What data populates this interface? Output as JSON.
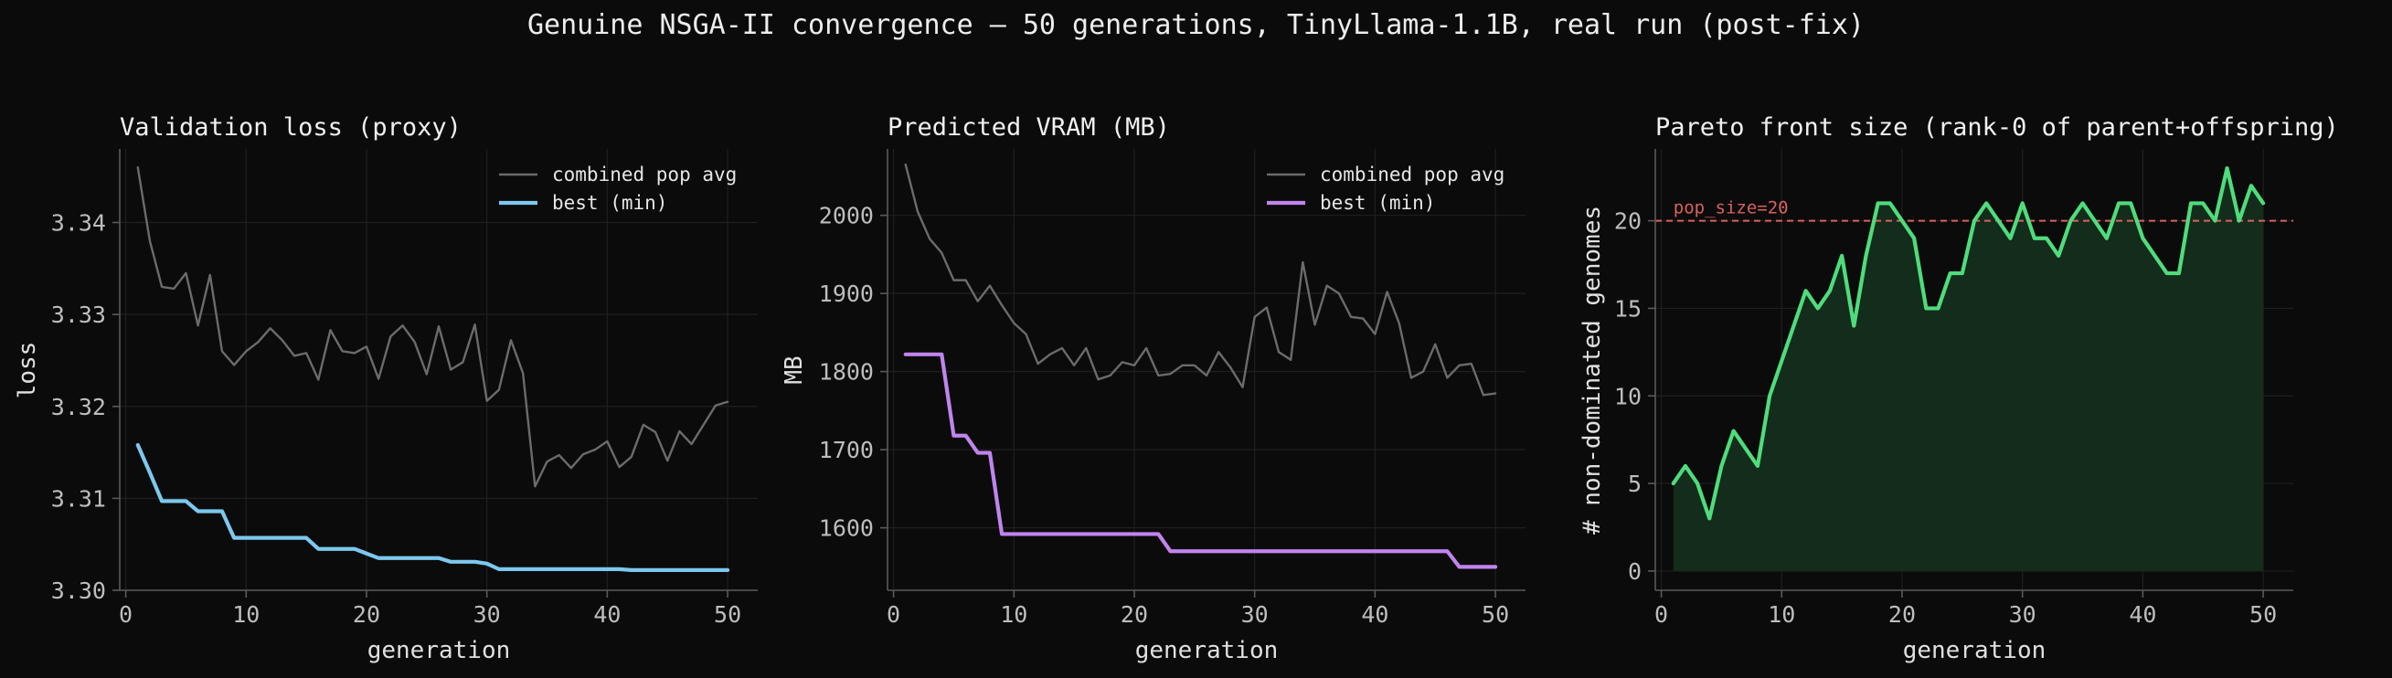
{
  "suptitle": "Genuine NSGA-II convergence — 50 generations, TinyLlama-1.1B, real run (post-fix)",
  "colors": {
    "background": "#0b0b0b",
    "axis": "#5a5a5a",
    "grid": "#1f1f1f",
    "text": "#e6e6e6",
    "tick_label": "#bdbdbd",
    "avg_line": "#6b6b6b",
    "loss_best": "#7cc8ee",
    "vram_best": "#c184ee",
    "pareto": "#4fdc7c",
    "pareto_fill": "#14301d",
    "pop_ref": "#d9625c"
  },
  "chart_data": [
    {
      "type": "line",
      "title": "Validation loss (proxy)",
      "xlabel": "generation",
      "ylabel": "loss",
      "xlim": [
        -0.5,
        52.5
      ],
      "ylim": [
        3.3,
        3.348
      ],
      "xticks": [
        0,
        10,
        20,
        30,
        40,
        50
      ],
      "yticks": [
        3.3,
        3.31,
        3.32,
        3.33,
        3.34
      ],
      "ytick_labels": [
        "3.30",
        "3.31",
        "3.32",
        "3.33",
        "3.34"
      ],
      "grid": true,
      "legend": "top-right",
      "x": [
        1,
        2,
        3,
        4,
        5,
        6,
        7,
        8,
        9,
        10,
        11,
        12,
        13,
        14,
        15,
        16,
        17,
        18,
        19,
        20,
        21,
        22,
        23,
        24,
        25,
        26,
        27,
        28,
        29,
        30,
        31,
        32,
        33,
        34,
        35,
        36,
        37,
        38,
        39,
        40,
        41,
        42,
        43,
        44,
        45,
        46,
        47,
        48,
        49,
        50
      ],
      "series": [
        {
          "name": "combined pop avg",
          "color": "#6b6b6b",
          "values": [
            3.346,
            3.338,
            3.333,
            3.3328,
            3.3345,
            3.3288,
            3.3343,
            3.326,
            3.3245,
            3.326,
            3.327,
            3.3285,
            3.3272,
            3.3255,
            3.3258,
            3.3229,
            3.3283,
            3.326,
            3.3258,
            3.3265,
            3.323,
            3.3276,
            3.3288,
            3.327,
            3.3235,
            3.3287,
            3.324,
            3.3248,
            3.3289,
            3.3206,
            3.3218,
            3.3272,
            3.3236,
            3.3113,
            3.314,
            3.3147,
            3.3133,
            3.3148,
            3.3153,
            3.3162,
            3.3134,
            3.3145,
            3.318,
            3.3172,
            3.3141,
            3.3173,
            3.3159,
            3.318,
            3.3201,
            3.3205
          ]
        },
        {
          "name": "best (min)",
          "color": "#7cc8ee",
          "values": [
            3.3158,
            3.3128,
            3.3097,
            3.3097,
            3.3097,
            3.3086,
            3.3086,
            3.3086,
            3.3057,
            3.3057,
            3.3057,
            3.3057,
            3.3057,
            3.3057,
            3.3057,
            3.3045,
            3.3045,
            3.3045,
            3.3045,
            3.304,
            3.3035,
            3.3035,
            3.3035,
            3.3035,
            3.3035,
            3.3035,
            3.3031,
            3.3031,
            3.3031,
            3.3029,
            3.3023,
            3.3023,
            3.3023,
            3.3023,
            3.3023,
            3.3023,
            3.3023,
            3.3023,
            3.3023,
            3.3023,
            3.3023,
            3.3022,
            3.3022,
            3.3022,
            3.3022,
            3.3022,
            3.3022,
            3.3022,
            3.3022,
            3.3022
          ]
        }
      ]
    },
    {
      "type": "line",
      "title": "Predicted VRAM (MB)",
      "xlabel": "generation",
      "ylabel": "MB",
      "xlim": [
        -0.5,
        52.5
      ],
      "ylim": [
        1520,
        2085
      ],
      "xticks": [
        0,
        10,
        20,
        30,
        40,
        50
      ],
      "yticks": [
        1600,
        1700,
        1800,
        1900,
        2000
      ],
      "ytick_labels": [
        "1600",
        "1700",
        "1800",
        "1900",
        "2000"
      ],
      "grid": true,
      "legend": "top-right",
      "x": [
        1,
        2,
        3,
        4,
        5,
        6,
        7,
        8,
        9,
        10,
        11,
        12,
        13,
        14,
        15,
        16,
        17,
        18,
        19,
        20,
        21,
        22,
        23,
        24,
        25,
        26,
        27,
        28,
        29,
        30,
        31,
        32,
        33,
        34,
        35,
        36,
        37,
        38,
        39,
        40,
        41,
        42,
        43,
        44,
        45,
        46,
        47,
        48,
        49,
        50
      ],
      "series": [
        {
          "name": "combined pop avg",
          "color": "#6b6b6b",
          "values": [
            2065,
            2005,
            1970,
            1952,
            1917,
            1917,
            1890,
            1910,
            1885,
            1862,
            1848,
            1810,
            1822,
            1830,
            1808,
            1830,
            1790,
            1795,
            1812,
            1808,
            1830,
            1795,
            1797,
            1808,
            1808,
            1795,
            1825,
            1805,
            1780,
            1870,
            1882,
            1825,
            1815,
            1940,
            1860,
            1910,
            1900,
            1870,
            1868,
            1848,
            1902,
            1862,
            1792,
            1800,
            1835,
            1792,
            1808,
            1810,
            1770,
            1772
          ]
        },
        {
          "name": "best (min)",
          "color": "#c184ee",
          "values": [
            1822,
            1822,
            1822,
            1822,
            1718,
            1718,
            1696,
            1696,
            1592,
            1592,
            1592,
            1592,
            1592,
            1592,
            1592,
            1592,
            1592,
            1592,
            1592,
            1592,
            1592,
            1592,
            1570,
            1570,
            1570,
            1570,
            1570,
            1570,
            1570,
            1570,
            1570,
            1570,
            1570,
            1570,
            1570,
            1570,
            1570,
            1570,
            1570,
            1570,
            1570,
            1570,
            1570,
            1570,
            1570,
            1570,
            1550,
            1550,
            1550,
            1550
          ]
        }
      ]
    },
    {
      "type": "area",
      "title": "Pareto front size (rank-0 of parent+offspring)",
      "xlabel": "generation",
      "ylabel": "# non-dominated genomes",
      "xlim": [
        -0.5,
        52.5
      ],
      "ylim": [
        -1.1,
        24.1
      ],
      "xticks": [
        0,
        10,
        20,
        30,
        40,
        50
      ],
      "yticks": [
        0,
        5,
        10,
        15,
        20
      ],
      "ytick_labels": [
        "0",
        "5",
        "10",
        "15",
        "20"
      ],
      "grid": true,
      "reference_line": {
        "y": 20,
        "label": "pop_size=20",
        "color": "#d9625c"
      },
      "x": [
        1,
        2,
        3,
        4,
        5,
        6,
        7,
        8,
        9,
        10,
        11,
        12,
        13,
        14,
        15,
        16,
        17,
        18,
        19,
        20,
        21,
        22,
        23,
        24,
        25,
        26,
        27,
        28,
        29,
        30,
        31,
        32,
        33,
        34,
        35,
        36,
        37,
        38,
        39,
        40,
        41,
        42,
        43,
        44,
        45,
        46,
        47,
        48,
        49,
        50
      ],
      "series": [
        {
          "color": "#4fdc7c",
          "values": [
            5,
            6,
            5,
            3,
            6,
            8,
            7,
            6,
            10,
            12,
            14,
            16,
            15,
            16,
            18,
            14,
            18,
            21,
            21,
            20,
            19,
            15,
            15,
            17,
            17,
            20,
            21,
            20,
            19,
            21,
            19,
            19,
            18,
            20,
            21,
            20,
            19,
            21,
            21,
            19,
            18,
            17,
            17,
            21,
            21,
            20,
            23,
            20,
            22,
            21
          ]
        }
      ]
    }
  ]
}
